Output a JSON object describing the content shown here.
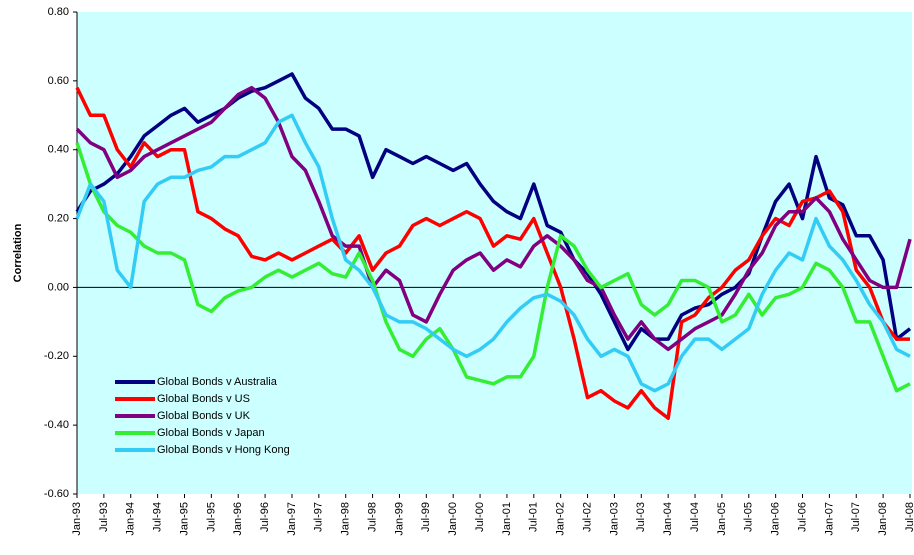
{
  "chart_data": {
    "type": "line",
    "y_label": "Correlation",
    "categories": [
      "Jan-93",
      null,
      "Jul-93",
      null,
      "Jan-94",
      null,
      "Jul-94",
      null,
      "Jan-95",
      null,
      "Jul-95",
      null,
      "Jan-96",
      null,
      "Jul-96",
      null,
      "Jan-97",
      null,
      "Jul-97",
      null,
      "Jan-98",
      null,
      "Jul-98",
      null,
      "Jan-99",
      null,
      "Jul-99",
      null,
      "Jan-00",
      null,
      "Jul-00",
      null,
      "Jan-01",
      null,
      "Jul-01",
      null,
      "Jan-02",
      null,
      "Jul-02",
      null,
      "Jan-03",
      null,
      "Jul-03",
      null,
      "Jan-04",
      null,
      "Jul-04",
      null,
      "Jan-05",
      null,
      "Jul-05",
      null,
      "Jan-06",
      null,
      "Jul-06",
      null,
      "Jan-07",
      null,
      "Jul-07",
      null,
      "Jan-08",
      null,
      "Jul-08"
    ],
    "series": [
      {
        "name": "Global Bonds v Australia",
        "color": "#000080",
        "values": [
          0.22,
          0.28,
          0.3,
          0.33,
          0.38,
          0.44,
          0.47,
          0.5,
          0.52,
          0.48,
          0.5,
          0.52,
          0.55,
          0.57,
          0.58,
          0.6,
          0.62,
          0.55,
          0.52,
          0.46,
          0.46,
          0.44,
          0.32,
          0.4,
          0.38,
          0.36,
          0.38,
          0.36,
          0.34,
          0.36,
          0.3,
          0.25,
          0.22,
          0.2,
          0.3,
          0.18,
          0.16,
          0.08,
          0.04,
          -0.02,
          -0.1,
          -0.18,
          -0.12,
          -0.15,
          -0.15,
          -0.08,
          -0.06,
          -0.05,
          -0.02,
          0.0,
          0.04,
          0.15,
          0.25,
          0.3,
          0.2,
          0.38,
          0.26,
          0.24,
          0.15,
          0.15,
          0.08,
          -0.15,
          -0.12
        ]
      },
      {
        "name": "Global Bonds v US",
        "color": "#ff0000",
        "values": [
          0.58,
          0.5,
          0.5,
          0.4,
          0.35,
          0.42,
          0.38,
          0.4,
          0.4,
          0.22,
          0.2,
          0.17,
          0.15,
          0.09,
          0.08,
          0.1,
          0.08,
          0.1,
          0.12,
          0.14,
          0.1,
          0.15,
          0.05,
          0.1,
          0.12,
          0.18,
          0.2,
          0.18,
          0.2,
          0.22,
          0.2,
          0.12,
          0.15,
          0.14,
          0.2,
          0.1,
          0.0,
          -0.15,
          -0.32,
          -0.3,
          -0.33,
          -0.35,
          -0.3,
          -0.35,
          -0.38,
          -0.1,
          -0.08,
          -0.03,
          0.0,
          0.05,
          0.08,
          0.15,
          0.2,
          0.18,
          0.25,
          0.26,
          0.28,
          0.22,
          0.05,
          0.0,
          -0.1,
          -0.15,
          -0.15
        ]
      },
      {
        "name": "Global Bonds v UK",
        "color": "#800080",
        "values": [
          0.46,
          0.42,
          0.4,
          0.32,
          0.34,
          0.38,
          0.4,
          0.42,
          0.44,
          0.46,
          0.48,
          0.52,
          0.56,
          0.58,
          0.55,
          0.48,
          0.38,
          0.34,
          0.25,
          0.15,
          0.12,
          0.12,
          0.0,
          0.05,
          0.02,
          -0.08,
          -0.1,
          -0.02,
          0.05,
          0.08,
          0.1,
          0.05,
          0.08,
          0.06,
          0.12,
          0.15,
          0.12,
          0.08,
          0.02,
          0.0,
          -0.08,
          -0.15,
          -0.1,
          -0.15,
          -0.18,
          -0.15,
          -0.12,
          -0.1,
          -0.08,
          -0.02,
          0.05,
          0.1,
          0.18,
          0.22,
          0.22,
          0.26,
          0.22,
          0.14,
          0.08,
          0.02,
          0.0,
          0.0,
          0.14
        ]
      },
      {
        "name": "Global Bonds v Japan",
        "color": "#33ee33",
        "values": [
          0.42,
          0.3,
          0.22,
          0.18,
          0.16,
          0.12,
          0.1,
          0.1,
          0.08,
          -0.05,
          -0.07,
          -0.03,
          -0.01,
          0.0,
          0.03,
          0.05,
          0.03,
          0.05,
          0.07,
          0.04,
          0.03,
          0.1,
          0.02,
          -0.1,
          -0.18,
          -0.2,
          -0.15,
          -0.12,
          -0.18,
          -0.26,
          -0.27,
          -0.28,
          -0.26,
          -0.26,
          -0.2,
          0.0,
          0.15,
          0.12,
          0.05,
          0.0,
          0.02,
          0.04,
          -0.05,
          -0.08,
          -0.05,
          0.02,
          0.02,
          0.0,
          -0.1,
          -0.08,
          -0.02,
          -0.08,
          -0.03,
          -0.02,
          0.0,
          0.07,
          0.05,
          0.0,
          -0.1,
          -0.1,
          -0.2,
          -0.3,
          -0.28
        ]
      },
      {
        "name": "Global Bonds v Hong Kong",
        "color": "#33ccf5",
        "values": [
          0.2,
          0.3,
          0.25,
          0.05,
          0.0,
          0.25,
          0.3,
          0.32,
          0.32,
          0.34,
          0.35,
          0.38,
          0.38,
          0.4,
          0.42,
          0.48,
          0.5,
          0.42,
          0.35,
          0.2,
          0.08,
          0.05,
          0.0,
          -0.08,
          -0.1,
          -0.1,
          -0.12,
          -0.15,
          -0.18,
          -0.2,
          -0.18,
          -0.15,
          -0.1,
          -0.06,
          -0.03,
          -0.02,
          -0.04,
          -0.08,
          -0.15,
          -0.2,
          -0.18,
          -0.2,
          -0.28,
          -0.3,
          -0.28,
          -0.2,
          -0.15,
          -0.15,
          -0.18,
          -0.15,
          -0.12,
          -0.02,
          0.05,
          0.1,
          0.08,
          0.2,
          0.12,
          0.08,
          0.02,
          -0.05,
          -0.1,
          -0.18,
          -0.2
        ]
      }
    ],
    "ylim": [
      -0.6,
      0.8
    ],
    "yticks": [
      {
        "value": -0.6,
        "label": "-0.60"
      },
      {
        "value": -0.4,
        "label": "-0.40"
      },
      {
        "value": -0.2,
        "label": "-0.20"
      },
      {
        "value": 0,
        "label": "0.00"
      },
      {
        "value": 0.2,
        "label": "0.20"
      },
      {
        "value": 0.4,
        "label": "0.40"
      },
      {
        "value": 0.6,
        "label": "0.60"
      },
      {
        "value": 0.8,
        "label": "0.80"
      }
    ],
    "grid": false,
    "legend": "lower left",
    "background": "#ccffff"
  }
}
